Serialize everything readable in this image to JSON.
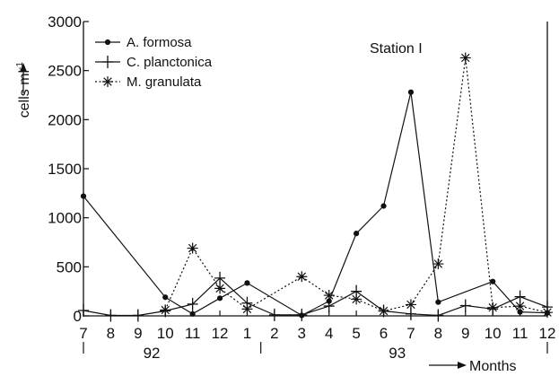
{
  "chart_data": {
    "type": "line",
    "annotation": "Station I",
    "ylabel": "cells ml",
    "ylabel_sup": "-1",
    "xlabel": "Months",
    "ylim": [
      0,
      3000
    ],
    "yticks": [
      0,
      500,
      1000,
      1500,
      2000,
      2500,
      3000
    ],
    "categories": [
      "7",
      "8",
      "9",
      "10",
      "11",
      "12",
      "1",
      "2",
      "3",
      "4",
      "5",
      "6",
      "7",
      "8",
      "9",
      "10",
      "11",
      "12"
    ],
    "year_labels": [
      {
        "label": "92",
        "at_category_index": 2.5
      },
      {
        "label": "93",
        "at_category_index": 11.5
      }
    ],
    "year_dividers": [
      0,
      6.5,
      17
    ],
    "grid": false,
    "legend": "top-left",
    "series": [
      {
        "name": "A. formosa",
        "marker": "dot",
        "dash": "solid",
        "points": [
          [
            0,
            1220
          ],
          [
            3,
            190
          ],
          [
            4,
            20
          ],
          [
            5,
            180
          ],
          [
            6,
            335
          ],
          [
            8,
            5
          ],
          [
            9,
            150
          ],
          [
            10,
            840
          ],
          [
            11,
            1120
          ],
          [
            12,
            2280
          ],
          [
            13,
            140
          ],
          [
            15,
            350
          ],
          [
            16,
            40
          ],
          [
            17,
            30
          ]
        ]
      },
      {
        "name": "C. planctonica",
        "marker": "plus",
        "dash": "solid",
        "points": [
          [
            0,
            55
          ],
          [
            1,
            5
          ],
          [
            2,
            5
          ],
          [
            3,
            50
          ],
          [
            4,
            120
          ],
          [
            5,
            385
          ],
          [
            6,
            130
          ],
          [
            7,
            10
          ],
          [
            8,
            10
          ],
          [
            9,
            100
          ],
          [
            10,
            250
          ],
          [
            11,
            50
          ],
          [
            12,
            20
          ],
          [
            13,
            5
          ],
          [
            14,
            105
          ],
          [
            15,
            70
          ],
          [
            16,
            195
          ],
          [
            17,
            90
          ]
        ]
      },
      {
        "name": "M. granulata",
        "marker": "star",
        "dash": "dotted",
        "points": [
          [
            3,
            60
          ],
          [
            4,
            690
          ],
          [
            5,
            280
          ],
          [
            6,
            70
          ],
          [
            8,
            400
          ],
          [
            9,
            210
          ],
          [
            10,
            170
          ],
          [
            11,
            50
          ],
          [
            12,
            115
          ],
          [
            13,
            530
          ],
          [
            14,
            2630
          ],
          [
            15,
            85
          ],
          [
            16,
            100
          ],
          [
            17,
            35
          ]
        ]
      }
    ]
  }
}
